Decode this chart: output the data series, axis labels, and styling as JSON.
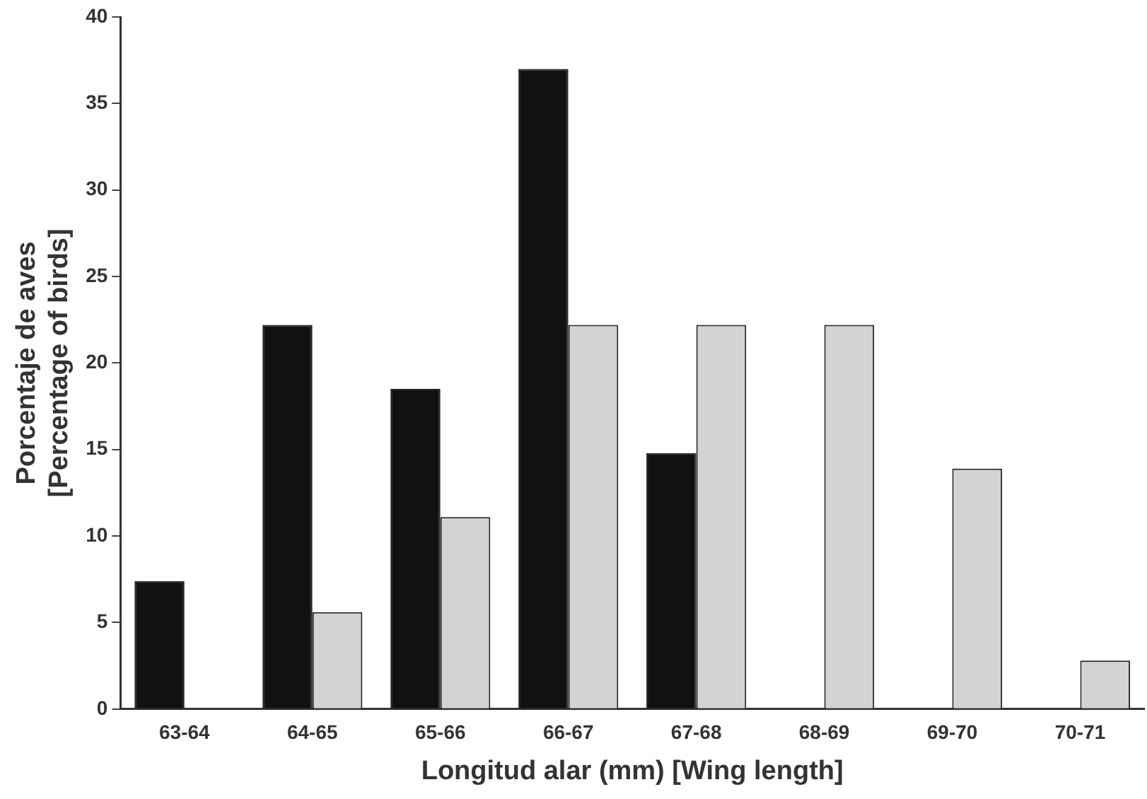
{
  "chart_data": {
    "type": "bar",
    "xlabel": "Longitud alar (mm) [Wing length]",
    "ylabel": "Porcentaje de aves\n[Percentage of birds]",
    "categories": [
      "63-64",
      "64-65",
      "65-66",
      "66-67",
      "67-68",
      "68-69",
      "69-70",
      "70-71"
    ],
    "series": [
      {
        "color": "#111111",
        "values": [
          7.4,
          22.2,
          18.5,
          37.0,
          14.8,
          null,
          null,
          null
        ]
      },
      {
        "color": "#d3d3d3",
        "values": [
          null,
          5.6,
          11.1,
          22.2,
          22.2,
          22.2,
          13.9,
          2.8
        ]
      }
    ],
    "ylim": [
      0,
      40
    ],
    "yticks": [
      0,
      5,
      10,
      15,
      20,
      25,
      30,
      35,
      40
    ],
    "grid": false,
    "legend": false
  }
}
